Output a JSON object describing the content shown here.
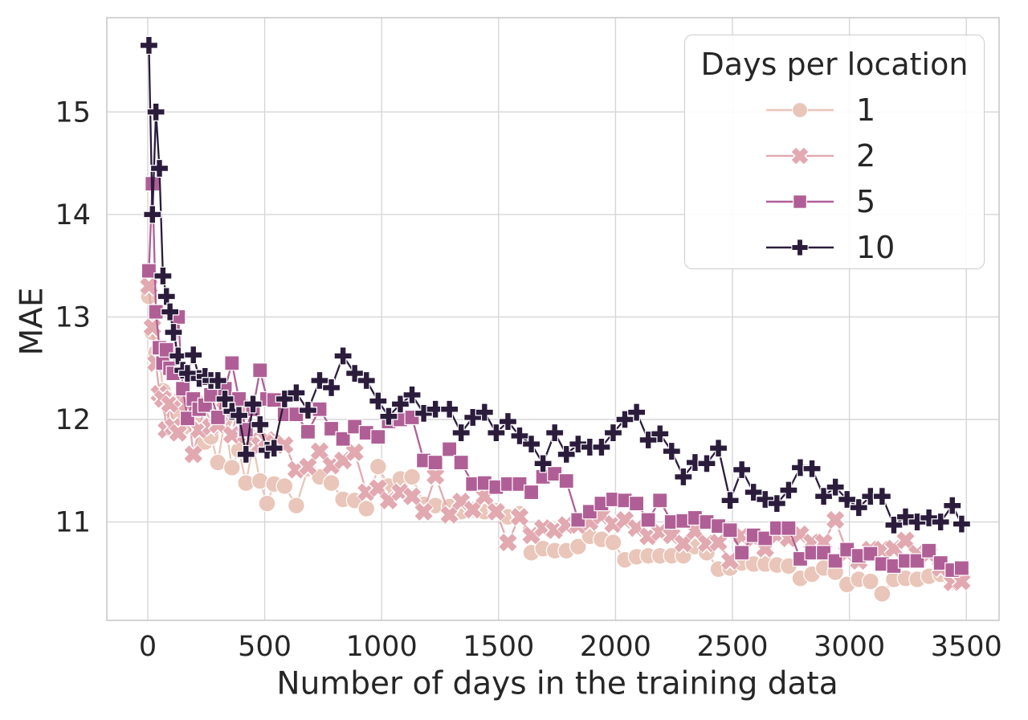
{
  "chart_data": {
    "type": "line",
    "title": "",
    "xlabel": "Number of days in the training data",
    "ylabel": "MAE",
    "x_ticks": [
      0,
      500,
      1000,
      1500,
      2000,
      2500,
      3000,
      3500
    ],
    "y_ticks": [
      11,
      12,
      13,
      14,
      15
    ],
    "xlim": [
      -175,
      3640
    ],
    "ylim": [
      10.04,
      15.92
    ],
    "grid": true,
    "legend_title": "Days per location",
    "legend_position": "upper right",
    "x": [
      5,
      20,
      35,
      50,
      65,
      80,
      95,
      110,
      130,
      150,
      170,
      195,
      220,
      245,
      270,
      300,
      330,
      360,
      390,
      420,
      450,
      480,
      510,
      540,
      585,
      635,
      685,
      735,
      785,
      835,
      885,
      935,
      985,
      1030,
      1080,
      1130,
      1180,
      1230,
      1290,
      1340,
      1390,
      1440,
      1490,
      1540,
      1590,
      1640,
      1690,
      1740,
      1790,
      1840,
      1890,
      1940,
      1990,
      2040,
      2090,
      2140,
      2190,
      2240,
      2290,
      2340,
      2390,
      2440,
      2490,
      2540,
      2590,
      2640,
      2690,
      2740,
      2790,
      2840,
      2890,
      2940,
      2990,
      3040,
      3090,
      3140,
      3190,
      3240,
      3290,
      3340,
      3390,
      3440,
      3480
    ],
    "series": [
      {
        "name": "1",
        "marker": "circle",
        "color": "#e9c6b9",
        "values": [
          13.2,
          12.85,
          12.65,
          12.6,
          12.28,
          12.2,
          12.1,
          11.9,
          12.06,
          11.92,
          12.2,
          12.01,
          12.1,
          11.78,
          11.83,
          11.58,
          12.0,
          11.53,
          11.7,
          11.38,
          11.75,
          11.4,
          11.18,
          11.37,
          11.35,
          11.16,
          11.52,
          11.44,
          11.38,
          11.22,
          11.21,
          11.13,
          11.54,
          11.35,
          11.42,
          11.44,
          11.17,
          11.16,
          11.15,
          11.1,
          11.12,
          11.1,
          11.11,
          11.05,
          11.08,
          10.7,
          10.74,
          10.72,
          10.72,
          10.76,
          10.86,
          10.83,
          10.8,
          10.63,
          10.66,
          10.67,
          10.67,
          10.67,
          10.67,
          10.76,
          10.7,
          10.54,
          10.55,
          10.6,
          10.59,
          10.59,
          10.58,
          10.57,
          10.45,
          10.49,
          10.55,
          10.51,
          10.39,
          10.44,
          10.42,
          10.3,
          10.44,
          10.45,
          10.44,
          10.47,
          10.49,
          10.41,
          10.45
        ]
      },
      {
        "name": "2",
        "marker": "x",
        "color": "#e2a9b1",
        "values": [
          13.3,
          12.9,
          12.55,
          12.25,
          12.2,
          11.9,
          12.15,
          11.93,
          11.87,
          12.2,
          12.15,
          11.66,
          11.9,
          12.15,
          11.93,
          11.95,
          12.1,
          11.85,
          12.15,
          11.85,
          11.8,
          11.75,
          11.8,
          11.77,
          11.75,
          11.51,
          11.54,
          11.69,
          11.55,
          11.6,
          11.68,
          11.29,
          11.33,
          11.21,
          11.29,
          11.25,
          11.1,
          11.45,
          11.07,
          11.2,
          11.12,
          11.25,
          11.1,
          10.8,
          11.05,
          10.87,
          10.94,
          10.92,
          10.97,
          10.97,
          11.0,
          11.06,
          10.98,
          11.02,
          10.94,
          10.86,
          10.9,
          10.87,
          10.79,
          10.91,
          10.79,
          10.8,
          10.62,
          10.86,
          10.84,
          10.74,
          10.87,
          10.84,
          10.88,
          10.8,
          10.8,
          11.02,
          10.7,
          10.62,
          10.73,
          10.73,
          10.74,
          10.82,
          10.69,
          10.69,
          10.55,
          10.41,
          10.42
        ]
      },
      {
        "name": "5",
        "marker": "square",
        "color": "#b05f96",
        "values": [
          13.45,
          14.3,
          13.05,
          12.7,
          12.55,
          12.68,
          12.5,
          12.45,
          13.0,
          12.3,
          12.01,
          12.2,
          12.1,
          12.14,
          12.24,
          12.02,
          12.3,
          12.55,
          12.2,
          11.9,
          12.1,
          12.48,
          12.2,
          12.19,
          12.05,
          12.05,
          11.88,
          12.1,
          11.91,
          11.81,
          11.93,
          11.87,
          11.83,
          11.98,
          12.0,
          12.02,
          11.6,
          11.58,
          11.71,
          11.58,
          11.37,
          11.38,
          11.34,
          11.37,
          11.37,
          11.29,
          11.44,
          11.47,
          11.4,
          11.02,
          11.1,
          11.18,
          11.22,
          11.21,
          11.18,
          11.02,
          11.21,
          11.0,
          11.01,
          11.04,
          11.0,
          10.96,
          10.92,
          10.7,
          10.87,
          10.84,
          10.94,
          10.94,
          10.64,
          10.7,
          10.7,
          10.62,
          10.73,
          10.67,
          10.69,
          10.59,
          10.57,
          10.62,
          10.62,
          10.72,
          10.6,
          10.53,
          10.55
        ]
      },
      {
        "name": "10",
        "marker": "plus",
        "color": "#2b1c3c",
        "values": [
          15.65,
          14.0,
          15.0,
          14.45,
          13.4,
          13.2,
          13.05,
          12.85,
          12.62,
          12.48,
          12.45,
          12.63,
          12.4,
          12.42,
          12.38,
          12.38,
          12.2,
          12.08,
          12.04,
          11.66,
          12.15,
          11.95,
          11.7,
          11.72,
          12.2,
          12.26,
          12.09,
          12.38,
          12.31,
          12.62,
          12.45,
          12.38,
          12.18,
          12.03,
          12.15,
          12.24,
          12.06,
          12.1,
          12.1,
          11.87,
          12.02,
          12.07,
          11.87,
          11.98,
          11.84,
          11.76,
          11.57,
          11.87,
          11.66,
          11.76,
          11.73,
          11.73,
          11.87,
          12.0,
          12.07,
          11.8,
          11.86,
          11.69,
          11.44,
          11.58,
          11.57,
          11.72,
          11.21,
          11.51,
          11.29,
          11.22,
          11.18,
          11.31,
          11.53,
          11.52,
          11.25,
          11.34,
          11.22,
          11.14,
          11.25,
          11.25,
          10.97,
          11.05,
          11.0,
          11.04,
          11.0,
          11.16,
          10.98
        ]
      }
    ]
  },
  "style_colors": {
    "grid": "#d6d6d6",
    "border": "#c9c9c9",
    "text": "#262626",
    "background": "#ffffff"
  }
}
